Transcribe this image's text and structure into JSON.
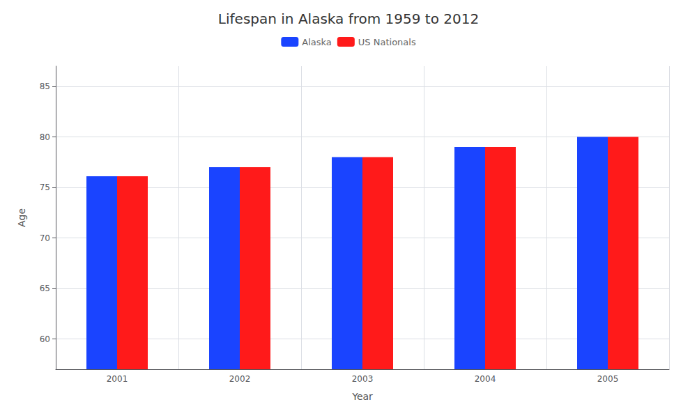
{
  "chart_data": {
    "type": "bar",
    "title": "Lifespan in Alaska from 1959 to 2012",
    "xlabel": "Year",
    "ylabel": "Age",
    "categories": [
      "2001",
      "2002",
      "2003",
      "2004",
      "2005"
    ],
    "series": [
      {
        "name": "Alaska",
        "color": "#1a44ff",
        "values": [
          76.1,
          77.0,
          78.0,
          79.0,
          80.0
        ]
      },
      {
        "name": "US Nationals",
        "color": "#ff1a1a",
        "values": [
          76.1,
          77.0,
          78.0,
          79.0,
          80.0
        ]
      }
    ],
    "ylim": [
      57,
      87
    ],
    "yticks": [
      60,
      65,
      70,
      75,
      80,
      85
    ],
    "grid": true,
    "legend": "top"
  }
}
